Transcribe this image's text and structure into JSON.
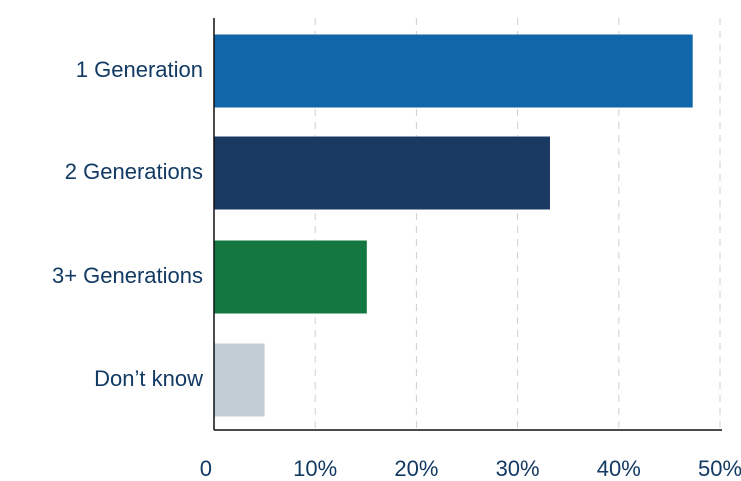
{
  "chart_data": {
    "type": "bar",
    "orientation": "horizontal",
    "categories": [
      "1 Generation",
      "2 Generations",
      "3+ Generations",
      "Don’t know"
    ],
    "values": [
      47.3,
      33.2,
      15.1,
      5.0
    ],
    "colors": [
      "#1066a8",
      "#1b3a63",
      "#13773f",
      "#c3cdd6"
    ],
    "xlim": [
      0,
      50
    ],
    "x_ticks": [
      0,
      10,
      20,
      30,
      40,
      50
    ],
    "x_tick_labels": [
      "0",
      "10%",
      "20%",
      "30%",
      "40%",
      "50%"
    ],
    "grid": true,
    "title": "",
    "xlabel": "",
    "ylabel": ""
  }
}
